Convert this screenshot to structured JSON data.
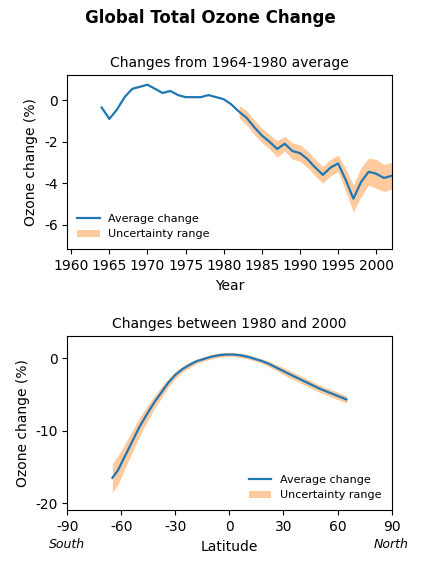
{
  "title": "Global Total Ozone Change",
  "chart_data": [
    {
      "type": "line",
      "subtitle": "Changes from 1964-1980 average",
      "xlabel": "Year",
      "ylabel": "Ozone change (%)",
      "xlim": [
        1959.5,
        2002
      ],
      "ylim": [
        -7.2,
        1.2
      ],
      "xticks": [
        1960,
        1965,
        1970,
        1975,
        1980,
        1985,
        1990,
        1995,
        2000
      ],
      "yticks": [
        0,
        -2,
        -4,
        -6
      ],
      "legend": "lower left",
      "x": [
        1964,
        1965,
        1966,
        1967,
        1968,
        1969,
        1970,
        1971,
        1972,
        1973,
        1974,
        1975,
        1976,
        1977,
        1978,
        1979,
        1980,
        1981,
        1982,
        1983,
        1984,
        1985,
        1986,
        1987,
        1988,
        1989,
        1990,
        1991,
        1992,
        1993,
        1994,
        1995,
        1996,
        1997,
        1998,
        1999,
        2000,
        2001,
        2002
      ],
      "series": [
        {
          "name": "Average change",
          "type": "line",
          "values": [
            -0.35,
            -0.9,
            -0.45,
            0.15,
            0.55,
            0.65,
            0.75,
            0.55,
            0.35,
            0.45,
            0.25,
            0.15,
            0.15,
            0.15,
            0.25,
            0.15,
            0.05,
            -0.2,
            -0.55,
            -0.85,
            -1.3,
            -1.7,
            -2.0,
            -2.35,
            -2.1,
            -2.45,
            -2.55,
            -2.85,
            -3.25,
            -3.6,
            -3.25,
            -3.05,
            -3.85,
            -4.75,
            -3.95,
            -3.45,
            -3.55,
            -3.75,
            -3.65
          ]
        },
        {
          "name": "Uncertainty range",
          "type": "band",
          "upper": [
            null,
            null,
            null,
            null,
            null,
            null,
            null,
            null,
            null,
            null,
            null,
            null,
            null,
            null,
            null,
            null,
            null,
            null,
            -0.25,
            -0.5,
            -0.95,
            -1.35,
            -1.65,
            -1.95,
            -1.75,
            -2.05,
            -2.15,
            -2.45,
            -2.85,
            -3.2,
            -2.85,
            -2.65,
            -3.3,
            -4.1,
            -3.25,
            -2.8,
            -2.85,
            -3.1,
            -3.0
          ],
          "lower": [
            null,
            null,
            null,
            null,
            null,
            null,
            null,
            null,
            null,
            null,
            null,
            null,
            null,
            null,
            null,
            null,
            null,
            null,
            -0.85,
            -1.2,
            -1.65,
            -2.05,
            -2.35,
            -2.75,
            -2.45,
            -2.85,
            -2.95,
            -3.25,
            -3.65,
            -4.0,
            -3.65,
            -3.45,
            -4.4,
            -5.4,
            -4.65,
            -4.1,
            -4.25,
            -4.4,
            -4.3
          ]
        }
      ]
    },
    {
      "type": "line",
      "subtitle": "Changes between 1980 and 2000",
      "xlabel": "Latitude",
      "ylabel": "Ozone change (%)",
      "xlim": [
        -90,
        90
      ],
      "ylim": [
        -21,
        3
      ],
      "xticks": [
        -90,
        -60,
        -30,
        0,
        30,
        60,
        90
      ],
      "yticks": [
        0,
        -10,
        -20
      ],
      "legend": "lower right",
      "annotations": [
        {
          "text": "South",
          "x": -90
        },
        {
          "text": "North",
          "x": 90
        }
      ],
      "x": [
        -65,
        -62,
        -58,
        -54,
        -50,
        -46,
        -42,
        -38,
        -34,
        -30,
        -26,
        -22,
        -18,
        -14,
        -10,
        -6,
        -2,
        2,
        6,
        10,
        14,
        18,
        22,
        26,
        30,
        35,
        40,
        45,
        50,
        55,
        60,
        65
      ],
      "series": [
        {
          "name": "Average change",
          "type": "line",
          "values": [
            -16.5,
            -15.5,
            -13.5,
            -11.5,
            -9.5,
            -7.8,
            -6.2,
            -4.8,
            -3.4,
            -2.3,
            -1.5,
            -0.9,
            -0.4,
            -0.1,
            0.2,
            0.4,
            0.5,
            0.5,
            0.4,
            0.2,
            -0.1,
            -0.4,
            -0.8,
            -1.3,
            -1.8,
            -2.4,
            -3.0,
            -3.6,
            -4.2,
            -4.7,
            -5.2,
            -5.7
          ]
        },
        {
          "name": "Uncertainty range",
          "type": "band",
          "upper": [
            -14.5,
            -13.5,
            -11.8,
            -10.0,
            -8.2,
            -6.7,
            -5.3,
            -4.0,
            -2.8,
            -1.8,
            -1.1,
            -0.5,
            -0.1,
            0.2,
            0.5,
            0.7,
            0.8,
            0.8,
            0.7,
            0.5,
            0.2,
            -0.1,
            -0.4,
            -0.9,
            -1.3,
            -1.9,
            -2.5,
            -3.1,
            -3.7,
            -4.2,
            -4.7,
            -5.2
          ],
          "lower": [
            -18.5,
            -17.5,
            -15.2,
            -13.0,
            -10.8,
            -8.9,
            -7.1,
            -5.6,
            -4.0,
            -2.8,
            -1.9,
            -1.3,
            -0.7,
            -0.4,
            -0.1,
            0.1,
            0.2,
            0.2,
            0.1,
            -0.1,
            -0.4,
            -0.7,
            -1.2,
            -1.7,
            -2.3,
            -2.9,
            -3.5,
            -4.1,
            -4.7,
            -5.2,
            -5.7,
            -6.2
          ]
        }
      ]
    }
  ]
}
